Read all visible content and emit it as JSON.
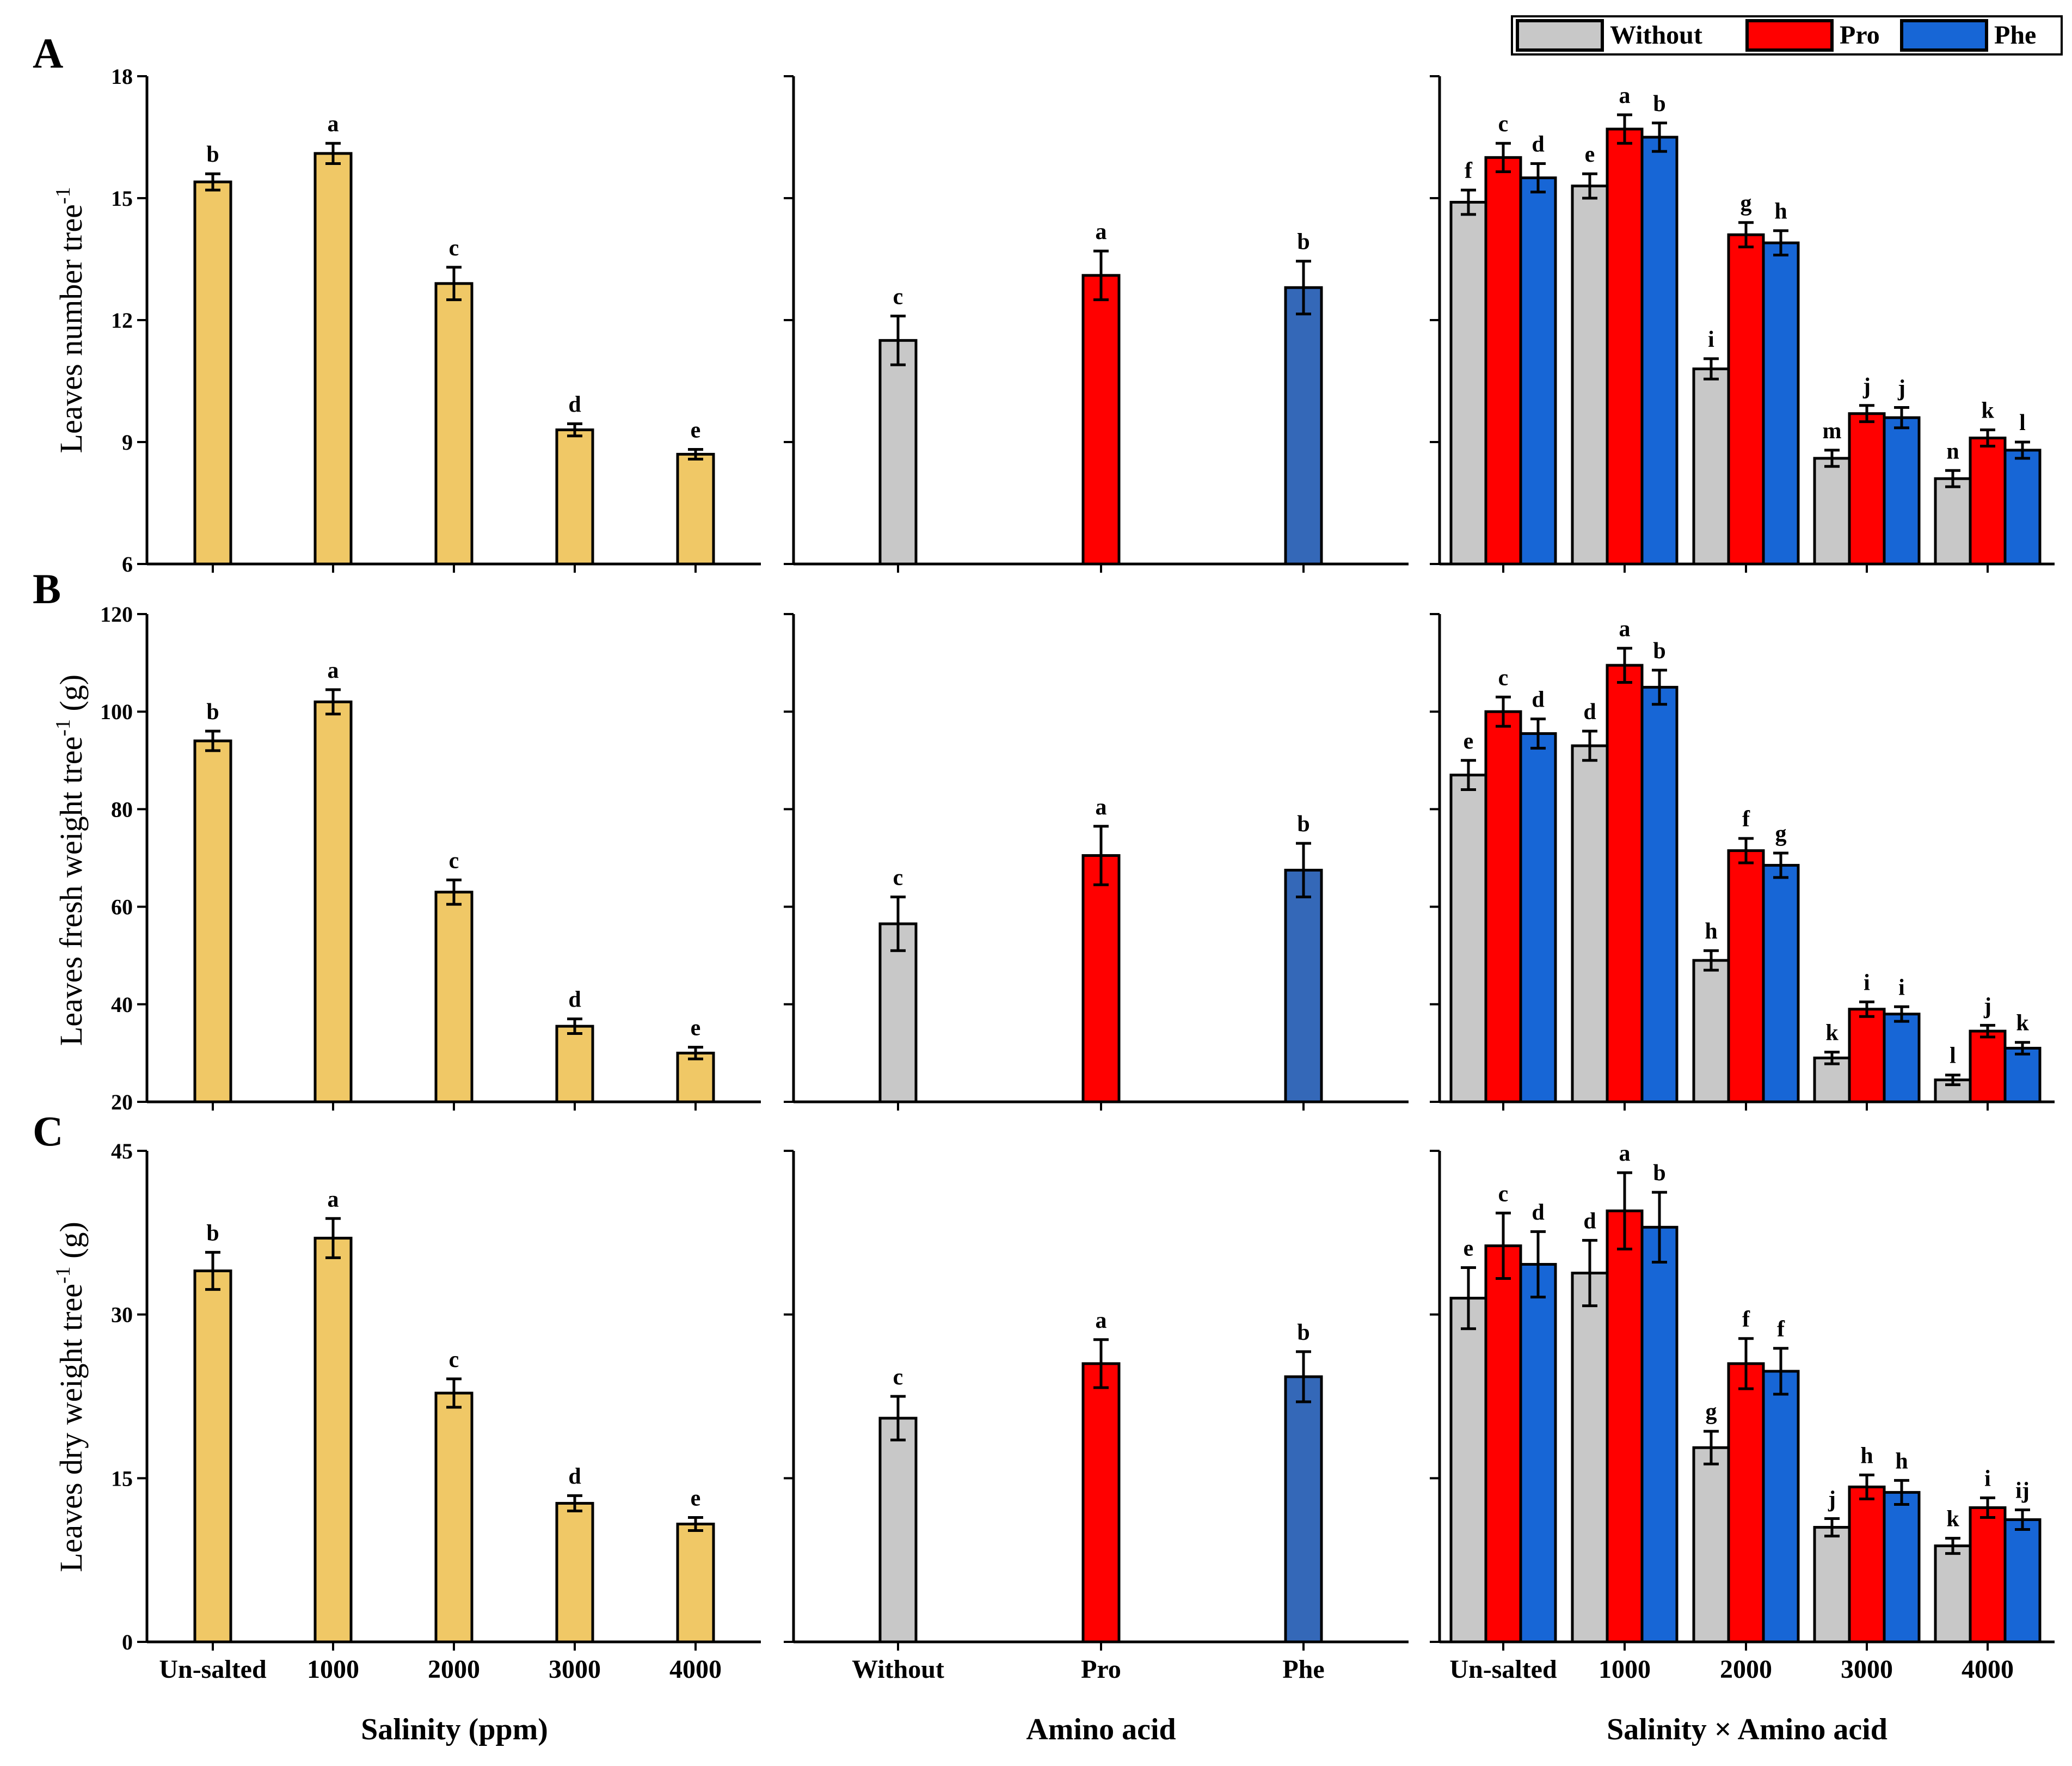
{
  "legend": {
    "items": [
      {
        "label": "Without",
        "color": "#c8c8c8"
      },
      {
        "label": "Pro",
        "color": "#ff0000"
      },
      {
        "label": "Phe",
        "color": "#1766d6"
      }
    ]
  },
  "colors": {
    "salinity_bar": "#f0c866",
    "without": "#c8c8c8",
    "pro": "#ff0000",
    "phe_mid": "#3468b8",
    "phe_right": "#1766d6"
  },
  "x_titles": [
    "Salinity (ppm)",
    "Amino acid",
    "Salinity × Amino acid"
  ],
  "rows": [
    {
      "letter": "A",
      "ylabel": "Leaves number tree",
      "ylabel_sup": "-1",
      "ylabel_unit": ""
    },
    {
      "letter": "B",
      "ylabel": "Leaves fresh weight tree",
      "ylabel_sup": "-1",
      "ylabel_unit": " (g)"
    },
    {
      "letter": "C",
      "ylabel": "Leaves dry weight tree",
      "ylabel_sup": "-1",
      "ylabel_unit": " (g)"
    }
  ],
  "chart_data": [
    {
      "type": "bar",
      "panel": "A-salinity",
      "categories": [
        "Un-salted",
        "1000",
        "2000",
        "3000",
        "4000"
      ],
      "values": [
        15.4,
        16.1,
        12.9,
        9.3,
        8.7
      ],
      "errors": [
        0.2,
        0.25,
        0.4,
        0.15,
        0.12
      ],
      "letters": [
        "b",
        "a",
        "c",
        "d",
        "e"
      ],
      "ylim": [
        6,
        18
      ],
      "yticks": [
        6,
        9,
        12,
        15,
        18
      ],
      "ylabel": "Leaves number tree-1",
      "xlabel": "Salinity (ppm)"
    },
    {
      "type": "bar",
      "panel": "A-amino",
      "categories": [
        "Without",
        "Pro",
        "Phe"
      ],
      "values": [
        11.5,
        13.1,
        12.8
      ],
      "errors": [
        0.6,
        0.6,
        0.65
      ],
      "letters": [
        "c",
        "a",
        "b"
      ],
      "ylim": [
        6,
        18
      ],
      "xlabel": "Amino acid"
    },
    {
      "type": "bar",
      "panel": "A-interaction",
      "categories": [
        "Un-salted",
        "1000",
        "2000",
        "3000",
        "4000"
      ],
      "series": [
        {
          "name": "Without",
          "values": [
            14.9,
            15.3,
            10.8,
            8.6,
            8.1
          ],
          "errors": [
            0.3,
            0.3,
            0.25,
            0.2,
            0.2
          ],
          "letters": [
            "f",
            "e",
            "i",
            "m",
            "n"
          ]
        },
        {
          "name": "Pro",
          "values": [
            16.0,
            16.7,
            14.1,
            9.7,
            9.1
          ],
          "errors": [
            0.35,
            0.35,
            0.3,
            0.2,
            0.2
          ],
          "letters": [
            "c",
            "a",
            "g",
            "j",
            "k"
          ]
        },
        {
          "name": "Phe",
          "values": [
            15.5,
            16.5,
            13.9,
            9.6,
            8.8
          ],
          "errors": [
            0.35,
            0.35,
            0.3,
            0.25,
            0.2
          ],
          "letters": [
            "d",
            "b",
            "h",
            "j",
            "l"
          ]
        }
      ],
      "ylim": [
        6,
        18
      ],
      "xlabel": "Salinity × Amino acid"
    },
    {
      "type": "bar",
      "panel": "B-salinity",
      "categories": [
        "Un-salted",
        "1000",
        "2000",
        "3000",
        "4000"
      ],
      "values": [
        94,
        102,
        63,
        35.5,
        30
      ],
      "errors": [
        2,
        2.5,
        2.5,
        1.5,
        1.2
      ],
      "letters": [
        "b",
        "a",
        "c",
        "d",
        "e"
      ],
      "ylim": [
        20,
        120
      ],
      "yticks": [
        20,
        40,
        60,
        80,
        100,
        120
      ],
      "ylabel": "Leaves fresh weight tree-1 (g)",
      "xlabel": "Salinity (ppm)"
    },
    {
      "type": "bar",
      "panel": "B-amino",
      "categories": [
        "Without",
        "Pro",
        "Phe"
      ],
      "values": [
        56.5,
        70.5,
        67.5
      ],
      "errors": [
        5.5,
        6,
        5.5
      ],
      "letters": [
        "c",
        "a",
        "b"
      ],
      "ylim": [
        20,
        120
      ],
      "xlabel": "Amino acid"
    },
    {
      "type": "bar",
      "panel": "B-interaction",
      "categories": [
        "Un-salted",
        "1000",
        "2000",
        "3000",
        "4000"
      ],
      "series": [
        {
          "name": "Without",
          "values": [
            87,
            93,
            49,
            29,
            24.5
          ],
          "errors": [
            3,
            3,
            2,
            1.2,
            1
          ],
          "letters": [
            "e",
            "d",
            "h",
            "k",
            "l"
          ]
        },
        {
          "name": "Pro",
          "values": [
            100,
            109.5,
            71.5,
            39,
            34.5
          ],
          "errors": [
            3,
            3.5,
            2.5,
            1.5,
            1.2
          ],
          "letters": [
            "c",
            "a",
            "f",
            "i",
            "j"
          ]
        },
        {
          "name": "Phe",
          "values": [
            95.5,
            105,
            68.5,
            38,
            31
          ],
          "errors": [
            3,
            3.5,
            2.5,
            1.5,
            1.2
          ],
          "letters": [
            "d",
            "b",
            "g",
            "i",
            "k"
          ]
        }
      ],
      "ylim": [
        20,
        120
      ],
      "xlabel": "Salinity × Amino acid"
    },
    {
      "type": "bar",
      "panel": "C-salinity",
      "categories": [
        "Un-salted",
        "1000",
        "2000",
        "3000",
        "4000"
      ],
      "values": [
        34,
        37,
        22.8,
        12.7,
        10.8
      ],
      "errors": [
        1.7,
        1.8,
        1.3,
        0.7,
        0.6
      ],
      "letters": [
        "b",
        "a",
        "c",
        "d",
        "e"
      ],
      "ylim": [
        0,
        45
      ],
      "yticks": [
        0,
        15,
        30,
        45
      ],
      "ylabel": "Leaves dry weight tree-1 (g)",
      "xlabel": "Salinity (ppm)"
    },
    {
      "type": "bar",
      "panel": "C-amino",
      "categories": [
        "Without",
        "Pro",
        "Phe"
      ],
      "values": [
        20.5,
        25.5,
        24.3
      ],
      "errors": [
        2,
        2.2,
        2.3
      ],
      "letters": [
        "c",
        "a",
        "b"
      ],
      "ylim": [
        0,
        45
      ],
      "xlabel": "Amino acid"
    },
    {
      "type": "bar",
      "panel": "C-interaction",
      "categories": [
        "Un-salted",
        "1000",
        "2000",
        "3000",
        "4000"
      ],
      "series": [
        {
          "name": "Without",
          "values": [
            31.5,
            33.8,
            17.8,
            10.5,
            8.8
          ],
          "errors": [
            2.8,
            3,
            1.5,
            0.8,
            0.7
          ],
          "letters": [
            "e",
            "d",
            "g",
            "j",
            "k"
          ]
        },
        {
          "name": "Pro",
          "values": [
            36.3,
            39.5,
            25.5,
            14.2,
            12.3
          ],
          "errors": [
            3,
            3.5,
            2.3,
            1.1,
            0.9
          ],
          "letters": [
            "c",
            "a",
            "f",
            "h",
            "i"
          ]
        },
        {
          "name": "Phe",
          "values": [
            34.6,
            38,
            24.8,
            13.7,
            11.2
          ],
          "errors": [
            3,
            3.2,
            2.1,
            1.1,
            0.9
          ],
          "letters": [
            "d",
            "b",
            "f",
            "h",
            "ij"
          ]
        }
      ],
      "ylim": [
        0,
        45
      ],
      "xlabel": "Salinity × Amino acid"
    }
  ]
}
